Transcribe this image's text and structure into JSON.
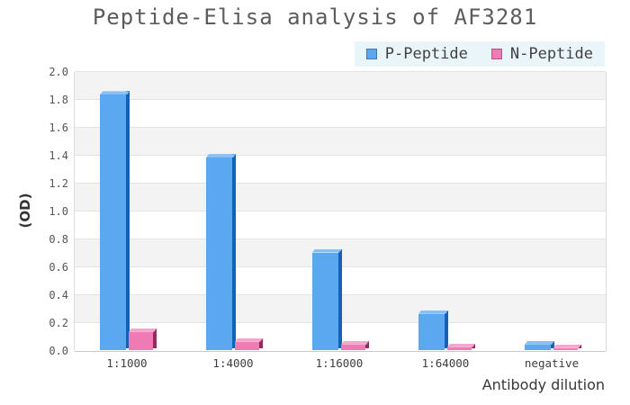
{
  "title": "Peptide-Elisa analysis of AF3281",
  "legend": {
    "position": "top-right",
    "background": "#e9f5f9",
    "items": [
      {
        "label": "P-Peptide",
        "color": "#5ba7f0"
      },
      {
        "label": "N-Peptide",
        "color": "#f07ab4"
      }
    ]
  },
  "axes": {
    "x_title": "Antibody dilution",
    "y_title": "(OD)",
    "ytick_labels": [
      "0.0",
      "0.2",
      "0.4",
      "0.6",
      "0.8",
      "1.0",
      "1.2",
      "1.4",
      "1.6",
      "1.8",
      "2.0"
    ]
  },
  "chart_data": {
    "type": "bar",
    "title": "Peptide-Elisa analysis of AF3281",
    "categories": [
      "1:1000",
      "1:4000",
      "1:16000",
      "1:64000",
      "negative"
    ],
    "series": [
      {
        "name": "P-Peptide",
        "values": [
          1.83,
          1.38,
          0.7,
          0.26,
          0.04
        ],
        "color": "#5ba7f0",
        "color_top": "#85c0f7",
        "color_side": "#1560b8"
      },
      {
        "name": "N-Peptide",
        "values": [
          0.13,
          0.06,
          0.04,
          0.02,
          0.015
        ],
        "color": "#f07ab4",
        "color_top": "#f8a5ce",
        "color_side": "#952a61"
      }
    ],
    "xlabel": "Antibody dilution",
    "ylabel": "(OD)",
    "ylim": [
      0,
      2.0
    ],
    "ytick_step": 0.2,
    "grid": true,
    "band_color": "#f3f3f3",
    "gridline_color": "#e3e3e3",
    "legend_position": "top-right",
    "style": "3d-bars"
  }
}
